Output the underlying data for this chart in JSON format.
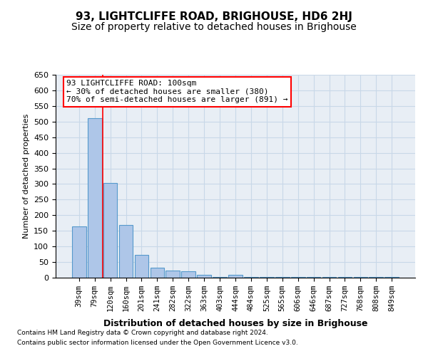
{
  "title": "93, LIGHTCLIFFE ROAD, BRIGHOUSE, HD6 2HJ",
  "subtitle": "Size of property relative to detached houses in Brighouse",
  "xlabel": "Distribution of detached houses by size in Brighouse",
  "ylabel": "Number of detached properties",
  "bar_labels": [
    "39sqm",
    "79sqm",
    "120sqm",
    "160sqm",
    "201sqm",
    "241sqm",
    "282sqm",
    "322sqm",
    "363sqm",
    "403sqm",
    "444sqm",
    "484sqm",
    "525sqm",
    "565sqm",
    "606sqm",
    "646sqm",
    "687sqm",
    "727sqm",
    "768sqm",
    "808sqm",
    "849sqm"
  ],
  "bar_values": [
    165,
    510,
    303,
    168,
    74,
    32,
    22,
    20,
    8,
    3,
    8,
    3,
    3,
    3,
    3,
    3,
    3,
    3,
    3,
    3,
    2
  ],
  "bar_color": "#aec6e8",
  "bar_edge_color": "#5599cc",
  "grid_color": "#c8d8e8",
  "bg_color": "#e8eef5",
  "annotation_line1": "93 LIGHTCLIFFE ROAD: 100sqm",
  "annotation_line2": "← 30% of detached houses are smaller (380)",
  "annotation_line3": "70% of semi-detached houses are larger (891) →",
  "annotation_box_color": "#ff0000",
  "redline_x": 1.5,
  "ylim": [
    0,
    650
  ],
  "yticks": [
    0,
    50,
    100,
    150,
    200,
    250,
    300,
    350,
    400,
    450,
    500,
    550,
    600,
    650
  ],
  "footer1": "Contains HM Land Registry data © Crown copyright and database right 2024.",
  "footer2": "Contains public sector information licensed under the Open Government Licence v3.0.",
  "title_fontsize": 11,
  "subtitle_fontsize": 10
}
